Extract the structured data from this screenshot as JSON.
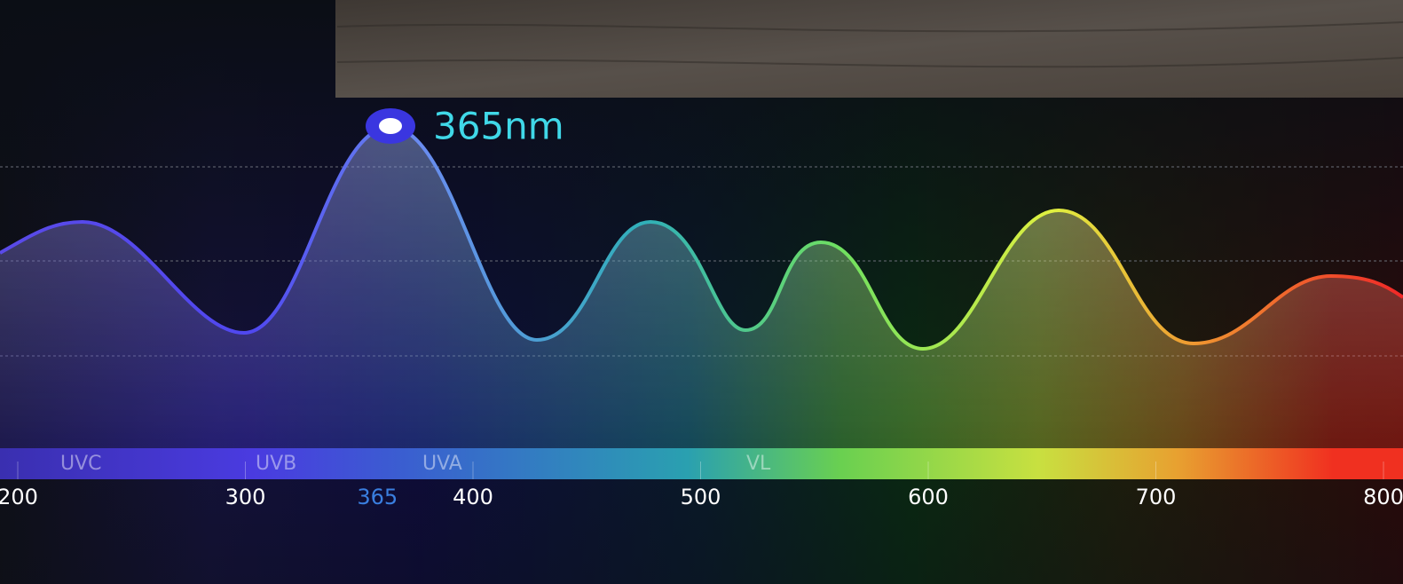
{
  "highlight_label": "365nm",
  "bands": [
    "UVC",
    "UVB",
    "UVA",
    "VL"
  ],
  "axis": {
    "xlim": [
      200,
      800
    ],
    "ticks": [
      200,
      300,
      400,
      500,
      600,
      700,
      800
    ],
    "highlight_tick": 365
  }
}
